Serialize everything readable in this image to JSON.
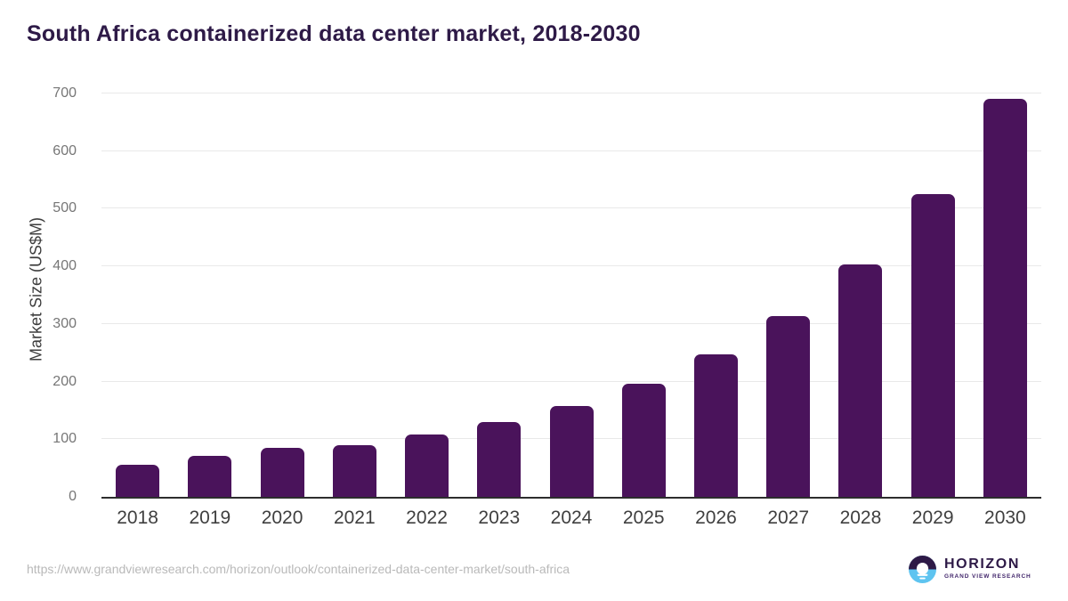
{
  "chart_data": {
    "type": "bar",
    "title": "South Africa containerized data center market, 2018-2030",
    "categories": [
      "2018",
      "2019",
      "2020",
      "2021",
      "2022",
      "2023",
      "2024",
      "2025",
      "2026",
      "2027",
      "2028",
      "2029",
      "2030"
    ],
    "values": [
      55,
      71,
      85,
      90,
      108,
      130,
      158,
      197,
      248,
      314,
      404,
      525,
      690
    ],
    "xlabel": "",
    "ylabel": "Market Size (US$M)",
    "ylim": [
      0,
      700
    ],
    "yticks": [
      0,
      100,
      200,
      300,
      400,
      500,
      600,
      700
    ],
    "grid": true,
    "legend": "none",
    "bar_color": "#4a135b"
  },
  "colors": {
    "bar": "#4a135b",
    "title_text": "#2e1a47",
    "axis_text": "#3f3f3f",
    "tick_text": "#767676",
    "gridline": "#e9e9e9",
    "baseline": "#2d2d2d",
    "url_text": "#b9b9b9",
    "logo_purple": "#2e1a47",
    "logo_blue": "#5ec4f0"
  },
  "footer": {
    "source_url": "https://www.grandviewresearch.com/horizon/outlook/containerized-data-center-market/south-africa",
    "logo": {
      "name": "HORIZON",
      "subtitle": "GRAND VIEW RESEARCH"
    }
  }
}
